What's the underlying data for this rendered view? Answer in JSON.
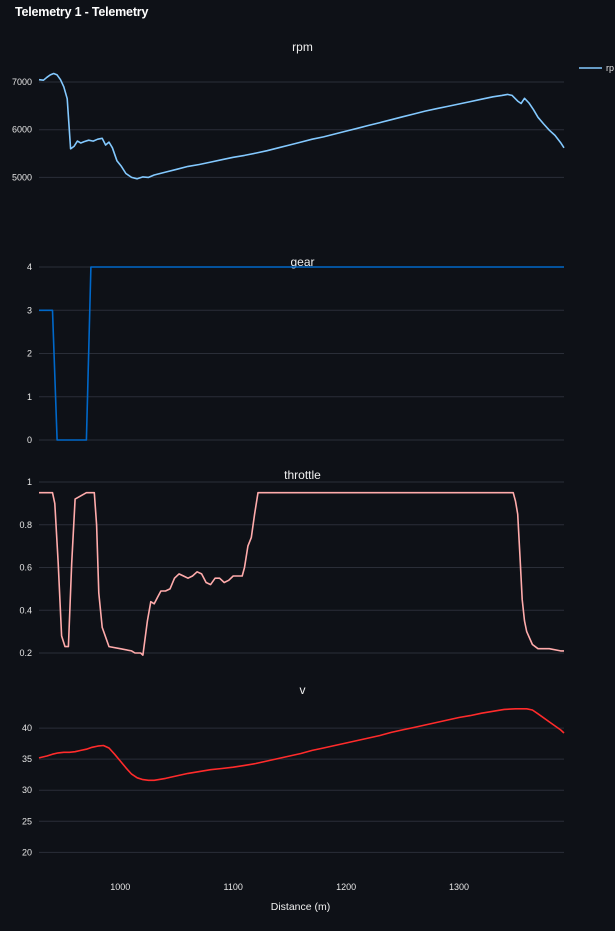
{
  "page": {
    "title": "Telemetry 1 - Telemetry"
  },
  "chart_data": {
    "type": "line",
    "xlabel": "Distance (m)",
    "xlim": [
      928,
      1393
    ],
    "xticks": [
      1000,
      1100,
      1200,
      1300
    ],
    "legend": {
      "label": "rp",
      "placement": "top-right"
    },
    "panels": [
      {
        "id": "rpm",
        "title": "rpm",
        "color": "#83c9ff",
        "ylim": [
          4000,
          7400
        ],
        "yticks": [
          5000,
          6000,
          7000
        ],
        "x": [
          928,
          932,
          935,
          938,
          941,
          944,
          947,
          950,
          953,
          956,
          959,
          962,
          965,
          968,
          972,
          976,
          980,
          984,
          987,
          990,
          993,
          997,
          1001,
          1005,
          1010,
          1015,
          1020,
          1025,
          1030,
          1040,
          1050,
          1060,
          1070,
          1080,
          1090,
          1100,
          1110,
          1120,
          1130,
          1140,
          1150,
          1160,
          1170,
          1180,
          1190,
          1200,
          1210,
          1220,
          1230,
          1240,
          1250,
          1260,
          1270,
          1280,
          1290,
          1300,
          1310,
          1320,
          1330,
          1338,
          1343,
          1347,
          1352,
          1355,
          1358,
          1362,
          1366,
          1370,
          1375,
          1380,
          1385,
          1390,
          1393
        ],
        "y": [
          7050,
          7040,
          7100,
          7150,
          7180,
          7150,
          7050,
          6900,
          6650,
          5600,
          5650,
          5760,
          5720,
          5750,
          5780,
          5760,
          5800,
          5820,
          5680,
          5740,
          5620,
          5350,
          5230,
          5080,
          5000,
          4970,
          5010,
          5000,
          5050,
          5110,
          5170,
          5230,
          5270,
          5320,
          5370,
          5420,
          5460,
          5510,
          5560,
          5620,
          5680,
          5740,
          5800,
          5850,
          5910,
          5970,
          6030,
          6090,
          6150,
          6210,
          6270,
          6330,
          6390,
          6440,
          6490,
          6540,
          6590,
          6640,
          6690,
          6720,
          6740,
          6720,
          6600,
          6550,
          6660,
          6560,
          6420,
          6260,
          6120,
          5990,
          5880,
          5730,
          5620
        ]
      },
      {
        "id": "gear",
        "title": "gear",
        "color": "#0068c9",
        "ylim": [
          0,
          4
        ],
        "yticks": [
          0,
          1,
          2,
          3,
          4
        ],
        "x": [
          928,
          940,
          944,
          970,
          974,
          1393
        ],
        "y": [
          3,
          3,
          0,
          0,
          4,
          4
        ]
      },
      {
        "id": "throttle",
        "title": "throttle",
        "color": "#ffabab",
        "ylim": [
          0.2,
          1
        ],
        "yticks": [
          0.2,
          0.4,
          0.6,
          0.8,
          1
        ],
        "x": [
          928,
          938,
          940,
          942,
          945,
          948,
          951,
          954,
          957,
          960,
          970,
          974,
          977,
          979,
          981,
          984,
          990,
          1000,
          1010,
          1013,
          1016,
          1018,
          1020,
          1024,
          1027,
          1030,
          1033,
          1036,
          1040,
          1044,
          1048,
          1052,
          1056,
          1060,
          1064,
          1068,
          1072,
          1076,
          1080,
          1084,
          1088,
          1092,
          1096,
          1100,
          1104,
          1108,
          1110,
          1113,
          1116,
          1119,
          1122,
          1127,
          1348,
          1350,
          1352,
          1354,
          1356,
          1358,
          1360,
          1365,
          1370,
          1380,
          1390,
          1393
        ],
        "y": [
          0.95,
          0.95,
          0.95,
          0.9,
          0.62,
          0.28,
          0.23,
          0.23,
          0.62,
          0.92,
          0.95,
          0.95,
          0.95,
          0.8,
          0.48,
          0.32,
          0.23,
          0.22,
          0.21,
          0.2,
          0.2,
          0.2,
          0.19,
          0.35,
          0.44,
          0.43,
          0.46,
          0.49,
          0.49,
          0.5,
          0.55,
          0.57,
          0.56,
          0.55,
          0.56,
          0.58,
          0.57,
          0.53,
          0.52,
          0.55,
          0.55,
          0.53,
          0.54,
          0.56,
          0.56,
          0.56,
          0.6,
          0.7,
          0.74,
          0.85,
          0.95,
          0.95,
          0.95,
          0.91,
          0.85,
          0.65,
          0.45,
          0.35,
          0.3,
          0.24,
          0.22,
          0.22,
          0.21,
          0.21
        ]
      },
      {
        "id": "v",
        "title": "v",
        "color": "#ff2b2b",
        "ylim": [
          17,
          45
        ],
        "yticks": [
          20,
          25,
          30,
          35,
          40
        ],
        "x": [
          928,
          935,
          940,
          945,
          950,
          955,
          960,
          965,
          970,
          975,
          980,
          985,
          990,
          995,
          1000,
          1005,
          1010,
          1015,
          1020,
          1025,
          1030,
          1040,
          1050,
          1060,
          1070,
          1080,
          1090,
          1100,
          1110,
          1120,
          1130,
          1140,
          1150,
          1160,
          1170,
          1180,
          1190,
          1200,
          1210,
          1220,
          1230,
          1240,
          1250,
          1260,
          1270,
          1280,
          1290,
          1300,
          1310,
          1320,
          1330,
          1340,
          1350,
          1355,
          1360,
          1365,
          1370,
          1380,
          1390,
          1393
        ],
        "y": [
          35.2,
          35.5,
          35.8,
          36,
          36.1,
          36.1,
          36.2,
          36.4,
          36.6,
          36.9,
          37.1,
          37.2,
          36.8,
          35.8,
          34.7,
          33.6,
          32.6,
          32,
          31.7,
          31.6,
          31.6,
          31.9,
          32.3,
          32.7,
          33,
          33.3,
          33.5,
          33.7,
          34,
          34.3,
          34.7,
          35.1,
          35.5,
          35.9,
          36.4,
          36.8,
          37.2,
          37.6,
          38,
          38.4,
          38.8,
          39.3,
          39.7,
          40.1,
          40.5,
          40.9,
          41.3,
          41.7,
          42,
          42.4,
          42.7,
          43,
          43.1,
          43.1,
          43.1,
          42.9,
          42.3,
          41,
          39.7,
          39.2
        ]
      }
    ]
  }
}
